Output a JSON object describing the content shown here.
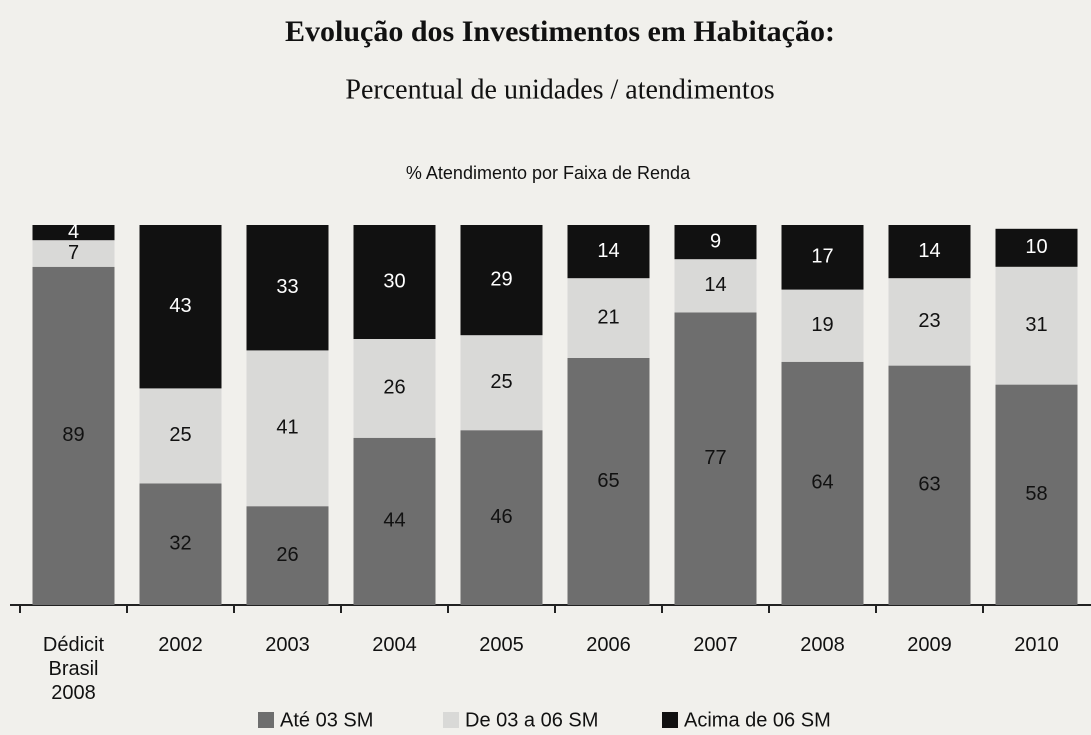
{
  "chart_data": {
    "type": "stacked_bar",
    "title": "Evolução dos Investimentos em Habitação:",
    "subtitle": "Percentual de unidades / atendimentos",
    "chart_title": "% Atendimento por Faixa de Renda",
    "categories": [
      "Dédicit Brasil 2008",
      "2002",
      "2003",
      "2004",
      "2005",
      "2006",
      "2007",
      "2008",
      "2009",
      "2010"
    ],
    "series": [
      {
        "name": "Até 03 SM",
        "color": "#6e6e6e",
        "values": [
          89,
          32,
          26,
          44,
          46,
          65,
          77,
          64,
          63,
          58
        ]
      },
      {
        "name": "De 03 a 06 SM",
        "color": "#d9d9d7",
        "values": [
          7,
          25,
          41,
          26,
          25,
          21,
          14,
          19,
          23,
          31
        ]
      },
      {
        "name": "Acima de 06 SM",
        "color": "#111111",
        "values": [
          4,
          43,
          33,
          30,
          29,
          14,
          9,
          17,
          14,
          10
        ]
      }
    ],
    "ylim": [
      0,
      100
    ]
  }
}
